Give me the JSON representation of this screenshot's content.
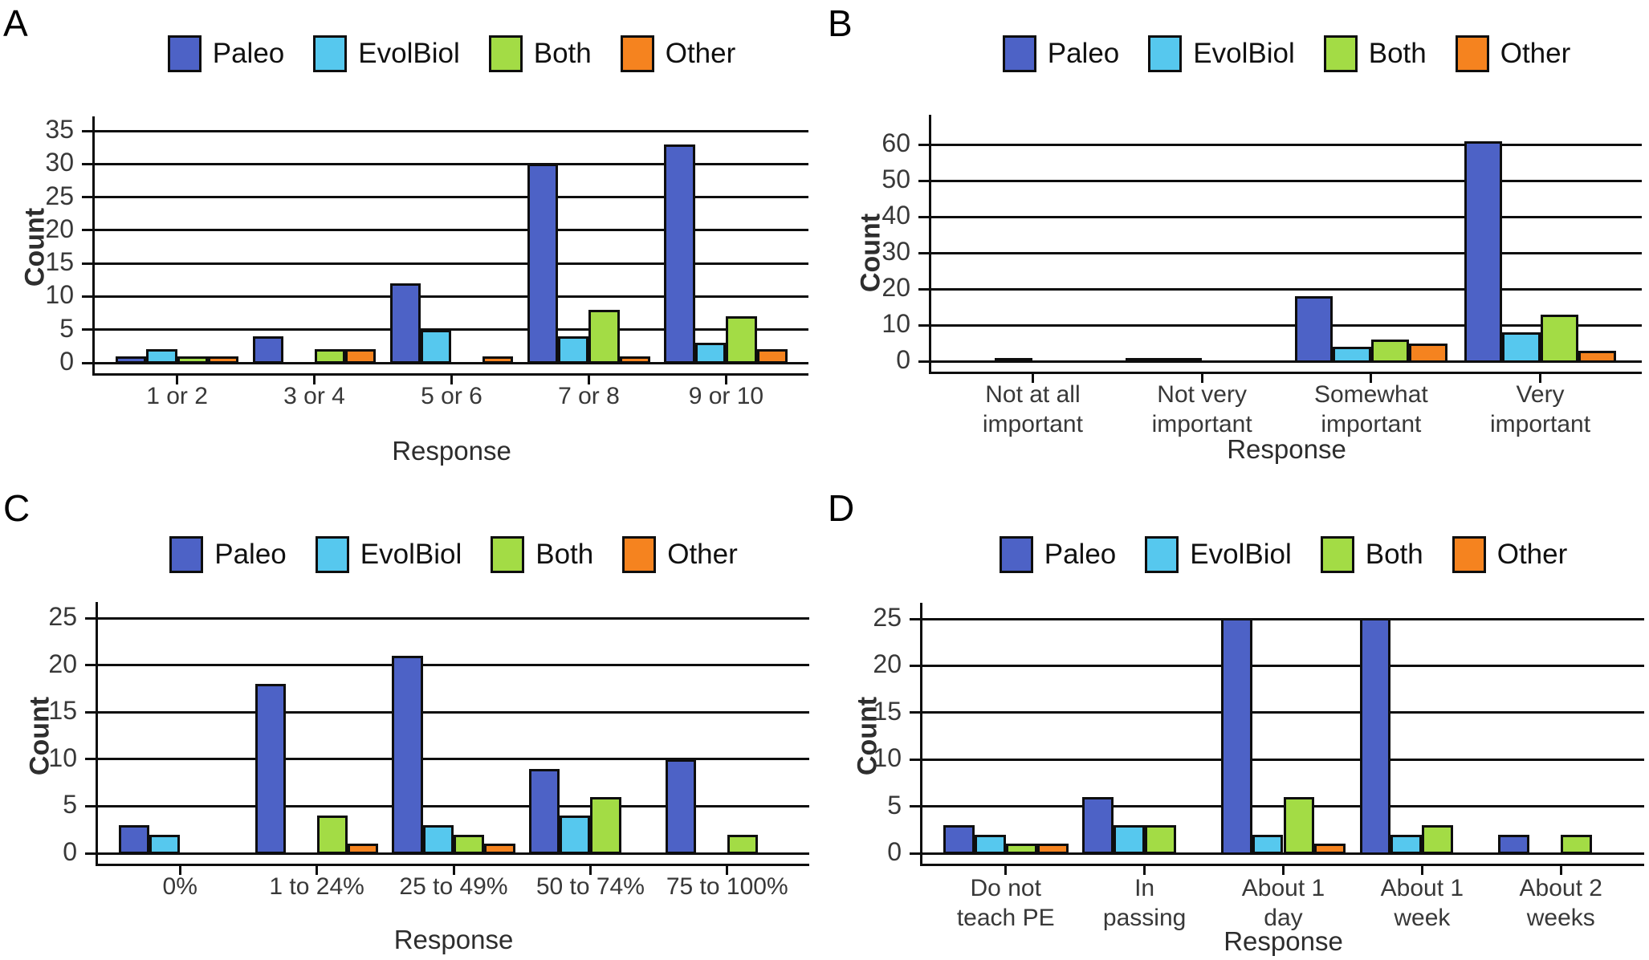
{
  "figure": {
    "description": "Four-panel grouped bar chart figure comparing survey responses of Paleo, EvolBiol, Both and Other groups",
    "panel_labels": [
      "A",
      "B",
      "C",
      "D"
    ]
  },
  "colors": {
    "paleo": "#4D62C6",
    "evolbiol": "#56C8EE",
    "both": "#A3DC45",
    "other": "#F5831F",
    "bar_border": "#0E0E0E",
    "axis": "#0E0E0E",
    "tick_text": "#383838",
    "title_text": "#2E2E2E"
  },
  "legend": {
    "entries": [
      {
        "label": "Paleo",
        "color_key": "paleo"
      },
      {
        "label": "EvolBiol",
        "color_key": "evolbiol"
      },
      {
        "label": "Both",
        "color_key": "both"
      },
      {
        "label": "Other",
        "color_key": "other"
      }
    ],
    "position": "top-center"
  },
  "chart_data": [
    {
      "panel_label": "A",
      "type": "bar",
      "xlabel": "Response",
      "ylabel": "Count",
      "categories": [
        "1 or 2",
        "3 or 4",
        "5 or 6",
        "7 or 8",
        "9 or 10"
      ],
      "series": [
        {
          "name": "Paleo",
          "color_key": "paleo",
          "values": [
            1,
            4,
            12,
            30,
            33
          ]
        },
        {
          "name": "EvolBiol",
          "color_key": "evolbiol",
          "values": [
            2,
            0,
            5,
            4,
            3
          ]
        },
        {
          "name": "Both",
          "color_key": "both",
          "values": [
            1,
            2,
            0,
            8,
            7
          ]
        },
        {
          "name": "Other",
          "color_key": "other",
          "values": [
            1,
            2,
            1,
            1,
            2
          ]
        }
      ],
      "ylim": [
        0,
        35
      ],
      "yticks": [
        0,
        5,
        10,
        15,
        20,
        25,
        30,
        35
      ],
      "grid": "horizontal-black",
      "legend_position": "top-center"
    },
    {
      "panel_label": "B",
      "type": "bar",
      "xlabel": "Response",
      "ylabel": "Count",
      "categories": [
        "Not at all\nimportant",
        "Not very\nimportant",
        "Somewhat\nimportant",
        "Very\nimportant"
      ],
      "series": [
        {
          "name": "Paleo",
          "color_key": "paleo",
          "values": [
            0,
            1,
            18,
            61
          ]
        },
        {
          "name": "EvolBiol",
          "color_key": "evolbiol",
          "values": [
            1,
            1,
            4,
            8
          ]
        },
        {
          "name": "Both",
          "color_key": "both",
          "values": [
            0,
            0,
            6,
            13
          ]
        },
        {
          "name": "Other",
          "color_key": "other",
          "values": [
            0,
            0,
            5,
            3
          ]
        }
      ],
      "ylim": [
        0,
        65
      ],
      "yticks": [
        0,
        10,
        20,
        30,
        40,
        50,
        60
      ],
      "grid": "horizontal-black",
      "legend_position": "top-center"
    },
    {
      "panel_label": "C",
      "type": "bar",
      "xlabel": "Response",
      "ylabel": "Count",
      "categories": [
        "0%",
        "1 to 24%",
        "25 to 49%",
        "50 to 74%",
        "75 to 100%"
      ],
      "series": [
        {
          "name": "Paleo",
          "color_key": "paleo",
          "values": [
            3,
            18,
            21,
            9,
            10
          ]
        },
        {
          "name": "EvolBiol",
          "color_key": "evolbiol",
          "values": [
            2,
            0,
            3,
            4,
            0
          ]
        },
        {
          "name": "Both",
          "color_key": "both",
          "values": [
            0,
            4,
            2,
            6,
            2
          ]
        },
        {
          "name": "Other",
          "color_key": "other",
          "values": [
            0,
            1,
            1,
            0,
            0
          ]
        }
      ],
      "ylim": [
        0,
        25
      ],
      "yticks": [
        0,
        5,
        10,
        15,
        20,
        25
      ],
      "grid": "horizontal-black",
      "legend_position": "top-center"
    },
    {
      "panel_label": "D",
      "type": "bar",
      "xlabel": "Response",
      "ylabel": "Count",
      "categories": [
        "Do not\nteach PE",
        "In\npassing",
        "About 1\nday",
        "About 1\nweek",
        "About 2\nweeks"
      ],
      "series": [
        {
          "name": "Paleo",
          "color_key": "paleo",
          "values": [
            3,
            6,
            25,
            25,
            2
          ],
          "clipped": [
            false,
            false,
            true,
            true,
            false
          ]
        },
        {
          "name": "EvolBiol",
          "color_key": "evolbiol",
          "values": [
            2,
            3,
            2,
            2,
            0
          ]
        },
        {
          "name": "Both",
          "color_key": "both",
          "values": [
            1,
            3,
            6,
            3,
            2
          ]
        },
        {
          "name": "Other",
          "color_key": "other",
          "values": [
            1,
            0,
            1,
            0,
            0
          ]
        }
      ],
      "ylim": [
        0,
        25
      ],
      "yticks": [
        0,
        5,
        10,
        15,
        20,
        25
      ],
      "grid": "horizontal-black",
      "legend_position": "top-center",
      "notes": "Paleo bars for 'About 1 day' and 'About 1 week' are clipped at the top of the y-axis (displayed value 25+)"
    }
  ]
}
